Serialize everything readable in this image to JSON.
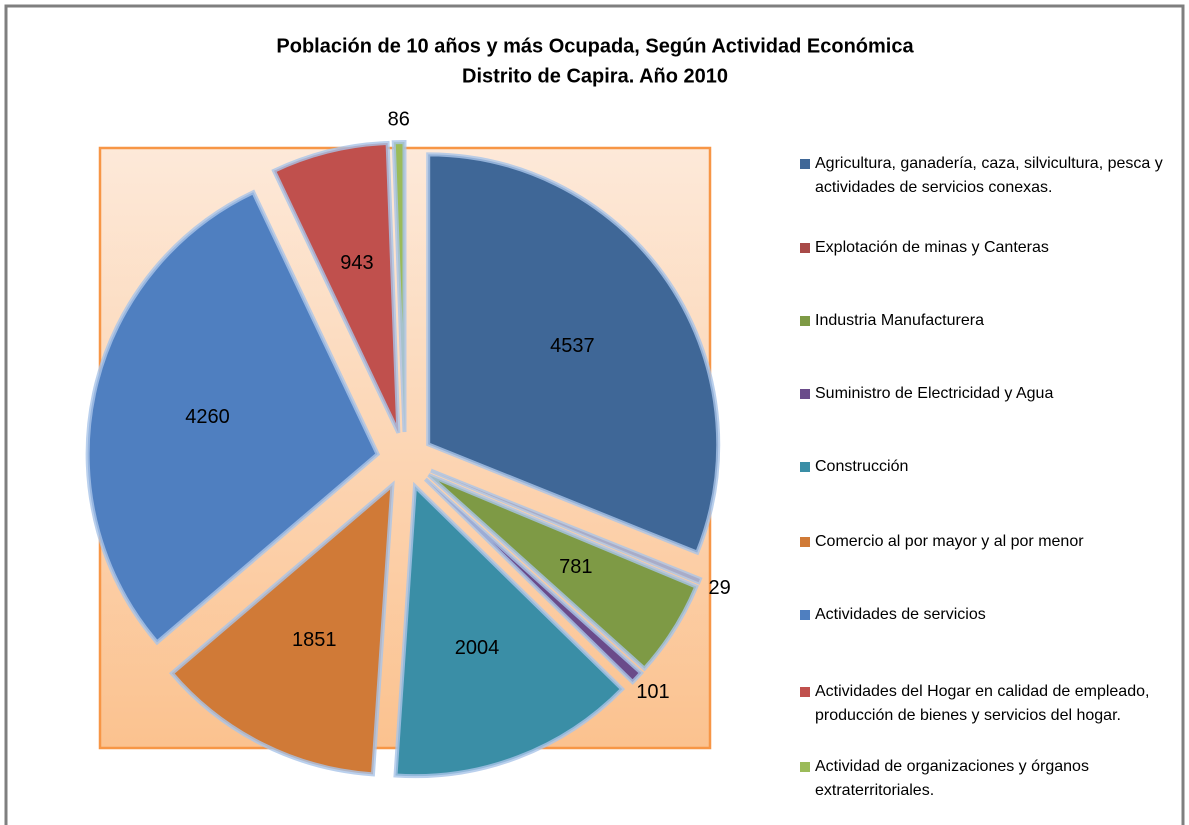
{
  "chart_data": {
    "type": "pie",
    "title": "Población de 10 años y más Ocupada, Según Actividad Económica",
    "subtitle": "Distrito de Capira. Año 2010",
    "categories": [
      "Agricultura, ganadería, caza, silvicultura, pesca y actividades de servicios conexas.",
      "Explotación de minas y Canteras",
      "Industria Manufacturera",
      "Suministro de Electricidad y Agua",
      "Construcción",
      "Comercio al por mayor y al por menor",
      "Actividades de servicios",
      "Actividades del Hogar en calidad de empleado, producción de bienes y servicios del hogar.",
      "Actividad de organizaciones y órganos extraterritoriales."
    ],
    "values": [
      4537,
      29,
      781,
      101,
      2004,
      1851,
      4260,
      943,
      86
    ],
    "colors": [
      "#3f6797",
      "#a84a48",
      "#7e9a45",
      "#6a4b8a",
      "#3a8ea6",
      "#d07a37",
      "#4f7fc0",
      "#c0504d",
      "#9bbb59"
    ],
    "legend": "right"
  }
}
